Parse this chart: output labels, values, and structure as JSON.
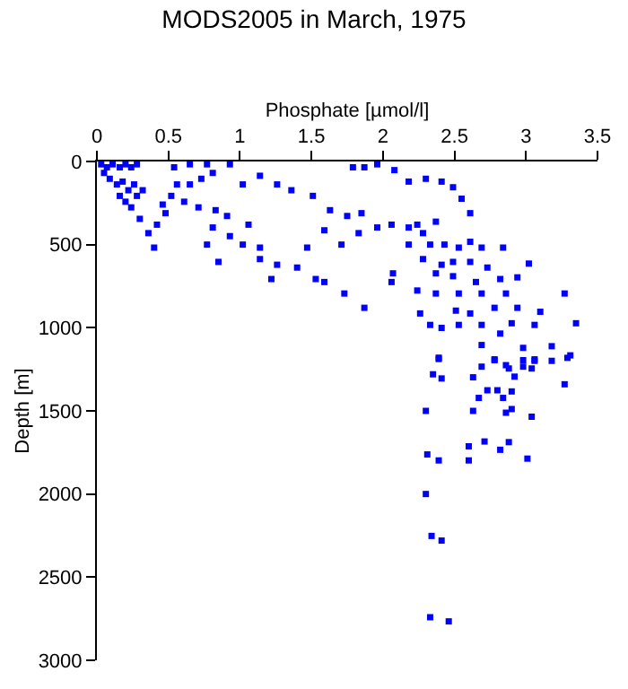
{
  "chart_data": {
    "type": "scatter",
    "title": "MODS2005 in March, 1975",
    "xlabel": "Phosphate [µmol/l]",
    "ylabel": "Depth [m]",
    "xlim": [
      0,
      3.5
    ],
    "xticks": [
      0,
      0.5,
      1,
      1.5,
      2,
      2.5,
      3,
      3.5
    ],
    "ylim": [
      3000,
      0
    ],
    "yticks": [
      0,
      500,
      1000,
      1500,
      2000,
      2500,
      3000
    ],
    "legend": false,
    "marker": "square",
    "series": [
      {
        "color": "#0000ff",
        "x": [
          0.03,
          0.07,
          0.11,
          0.16,
          0.2,
          0.24,
          0.28,
          0.05,
          0.09,
          0.14,
          0.18,
          0.22,
          0.26,
          0.16,
          0.2,
          0.28,
          0.32,
          0.24,
          0.3,
          0.36,
          0.4,
          0.42,
          0.48,
          0.46,
          0.52,
          0.56,
          0.54,
          0.65,
          0.77,
          0.93,
          0.81,
          0.73,
          0.65,
          0.61,
          0.71,
          0.83,
          0.91,
          0.81,
          0.93,
          0.77,
          0.85,
          1.02,
          1.14,
          1.06,
          1.02,
          1.14,
          1.26,
          1.36,
          1.51,
          1.63,
          1.75,
          1.85,
          1.79,
          1.87,
          1.96,
          2.08,
          2.18,
          2.3,
          2.41,
          2.49,
          2.55,
          2.61,
          2.37,
          2.28,
          2.18,
          2.06,
          1.96,
          1.83,
          1.71,
          1.59,
          1.47,
          1.4,
          1.26,
          1.22,
          1.14,
          1.53,
          1.59,
          1.73,
          1.87,
          2.06,
          2.07,
          2.24,
          2.18,
          2.33,
          2.43,
          2.53,
          2.61,
          2.69,
          2.84,
          2.28,
          2.41,
          2.49,
          2.61,
          2.73,
          3.02,
          2.37,
          2.49,
          2.65,
          2.82,
          2.94,
          2.24,
          2.37,
          2.53,
          2.69,
          2.86,
          3.27,
          2.26,
          2.51,
          2.61,
          2.78,
          2.94,
          3.1,
          2.33,
          2.41,
          2.53,
          2.69,
          2.9,
          3.06,
          3.35,
          2.69,
          2.82,
          2.98,
          3.18,
          3.31,
          2.39,
          2.78,
          3.06,
          2.86,
          2.39,
          2.35,
          2.41,
          2.63,
          2.69,
          2.78,
          2.88,
          2.98,
          3.06,
          3.18,
          3.29,
          3.27,
          2.73,
          2.8,
          2.67,
          2.84,
          2.9,
          2.92,
          2.98,
          3.04,
          2.3,
          2.63,
          2.86,
          2.9,
          3.04,
          2.6,
          2.71,
          2.82,
          2.88,
          2.31,
          2.39,
          2.6,
          3.01,
          2.3,
          2.34,
          2.41,
          2.33,
          2.46
        ],
        "values": [
          17,
          35,
          17,
          35,
          17,
          35,
          17,
          69,
          104,
          138,
          121,
          173,
          138,
          207,
          242,
          207,
          173,
          276,
          345,
          431,
          518,
          380,
          311,
          259,
          207,
          138,
          35,
          17,
          17,
          17,
          69,
          104,
          138,
          242,
          276,
          293,
          328,
          397,
          449,
          500,
          604,
          500,
          587,
          380,
          138,
          86,
          138,
          173,
          207,
          293,
          328,
          311,
          35,
          35,
          17,
          52,
          121,
          104,
          121,
          155,
          224,
          311,
          362,
          431,
          397,
          380,
          397,
          431,
          500,
          414,
          518,
          638,
          621,
          707,
          518,
          707,
          725,
          794,
          880,
          725,
          673,
          380,
          500,
          500,
          500,
          518,
          483,
          518,
          518,
          587,
          621,
          604,
          604,
          638,
          614,
          673,
          690,
          725,
          707,
          697,
          776,
          794,
          794,
          794,
          794,
          794,
          914,
          897,
          914,
          880,
          880,
          904,
          983,
          1001,
          983,
          983,
          973,
          983,
          973,
          1104,
          1035,
          1121,
          1111,
          1166,
          1180,
          1190,
          1190,
          1225,
          1188,
          1280,
          1305,
          1298,
          1234,
          1195,
          1245,
          1195,
          1199,
          1199,
          1181,
          1340,
          1376,
          1376,
          1422,
          1422,
          1383,
          1294,
          1234,
          1245,
          1500,
          1500,
          1511,
          1489,
          1535,
          1713,
          1684,
          1734,
          1688,
          1762,
          1798,
          1798,
          1787,
          2000,
          2252,
          2280,
          2741,
          2766
        ]
      }
    ]
  }
}
